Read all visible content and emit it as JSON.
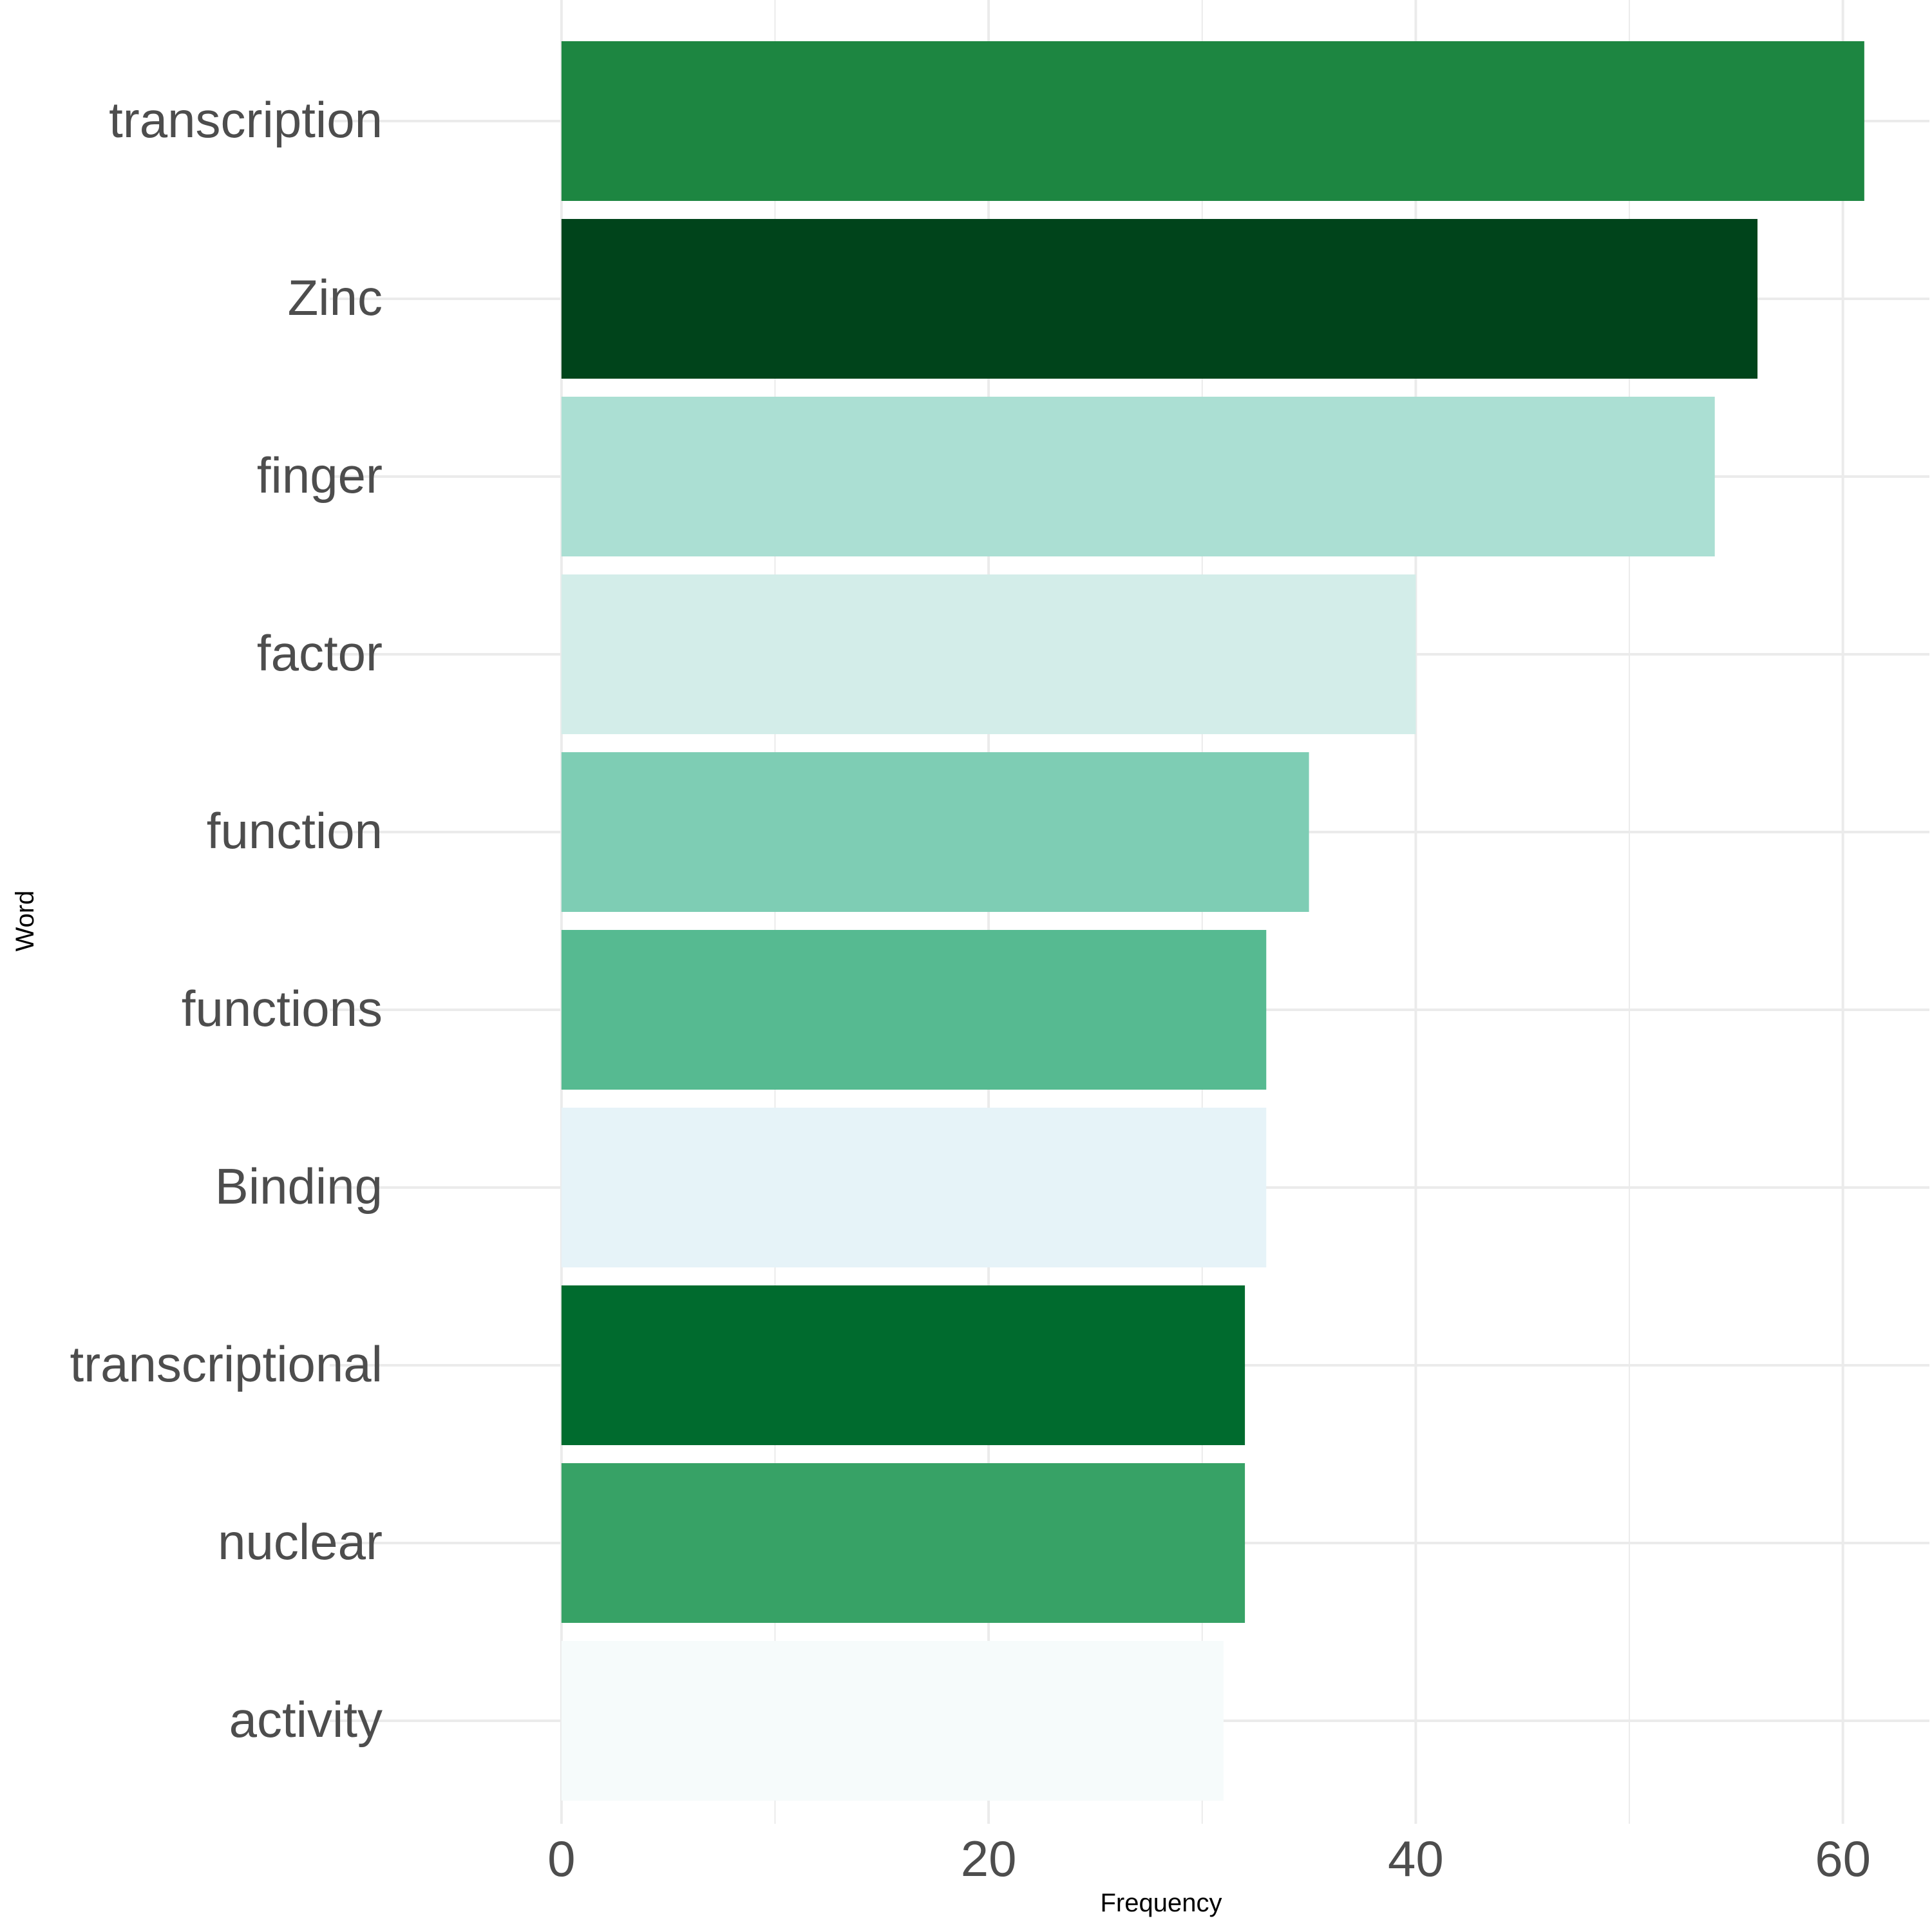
{
  "chart_data": {
    "type": "bar",
    "orientation": "horizontal",
    "title": "",
    "xlabel": "Frequency",
    "ylabel": "Word",
    "categories": [
      "transcription",
      "Zinc",
      "finger",
      "factor",
      "function",
      "functions",
      "Binding",
      "transcriptional",
      "nuclear",
      "activity"
    ],
    "values": [
      61,
      56,
      54,
      40,
      35,
      33,
      33,
      32,
      32,
      31
    ],
    "colors": [
      "#1d8641",
      "#00441b",
      "#abdfd3",
      "#d3ede9",
      "#7ecdb4",
      "#56ba91",
      "#e6f3f8",
      "#006b2e",
      "#37a266",
      "#f6fbfb"
    ],
    "xlim": [
      -10.85,
      64.05
    ],
    "x_ticks": [
      0,
      20,
      40,
      60
    ],
    "grid": true,
    "legend": "none"
  }
}
